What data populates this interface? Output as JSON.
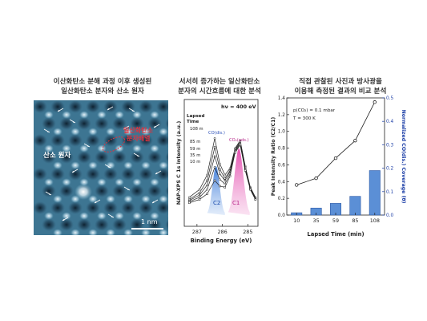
{
  "panels": {
    "stm": {
      "caption_line1": "이산화탄소 분해 과정 이후 생성된",
      "caption_line2": "일산화탄소 분자와 산소 원자",
      "label_oxygen": "산소 원자",
      "label_co_line1": "일산화탄소",
      "label_co_line2": "분자배열",
      "scale_bar": "1 nm"
    },
    "xps": {
      "caption_line1": "서서히 증가하는 일산화탄소",
      "caption_line2": "분자의 시간흐름에 대한 분석",
      "photon_energy": "hν = 400 eV",
      "legend_title_1": "Lapsed",
      "legend_title_2": "Time",
      "ylabel": "NAP-XPS  C 1s intensity (a.u.)",
      "xlabel": "Binding Energy (eV)",
      "peak_co": "CO(dis.)",
      "peak_co2": "CO₂(ads.)",
      "c1": "C1",
      "c2": "C2"
    },
    "bar": {
      "caption_line1": "직접 관찰된 사진과 방사광을",
      "caption_line2": "이용해 측정된 결과의 비교 분석",
      "condition_1": "p(CO₂) = 0.1 mbar",
      "condition_2": "T = 300 K",
      "ylabel_left": "Peak Intensity Ratio (C2/C1)",
      "ylabel_right": "Normalized CO(dis.) Coverage (θ)",
      "xlabel": "Lapsed Time (min)"
    }
  },
  "chart_data": [
    {
      "type": "line",
      "title": "",
      "xlabel": "Binding Energy (eV)",
      "ylabel": "NAP-XPS  C 1s intensity (a.u.)",
      "x_ticks": [
        "287",
        "286",
        "285"
      ],
      "xlim": [
        287.5,
        284.6
      ],
      "series": [
        {
          "name": "108 m",
          "x": [
            287.3,
            286.9,
            286.6,
            286.3,
            286.1,
            285.9,
            285.7,
            285.5,
            285.3,
            285.1,
            284.9,
            284.7
          ],
          "y": [
            1.6,
            2.3,
            3.6,
            6.9,
            4.6,
            3.6,
            4.2,
            6.0,
            6.7,
            4.4,
            2.5,
            1.6
          ]
        },
        {
          "name": "85 m",
          "x": [
            287.3,
            286.9,
            286.6,
            286.3,
            286.1,
            285.9,
            285.7,
            285.5,
            285.3,
            285.1,
            284.9,
            284.7
          ],
          "y": [
            1.4,
            2.0,
            3.1,
            6.1,
            4.1,
            3.3,
            4.0,
            5.9,
            6.6,
            4.3,
            2.4,
            1.5
          ]
        },
        {
          "name": "59 m",
          "x": [
            287.3,
            286.9,
            286.6,
            286.3,
            286.1,
            285.9,
            285.7,
            285.5,
            285.3,
            285.1,
            284.9,
            284.7
          ],
          "y": [
            1.3,
            1.8,
            2.7,
            5.3,
            3.7,
            3.1,
            3.9,
            5.8,
            6.5,
            4.2,
            2.4,
            1.5
          ]
        },
        {
          "name": "35 m",
          "x": [
            287.3,
            286.9,
            286.6,
            286.3,
            286.1,
            285.9,
            285.7,
            285.5,
            285.3,
            285.1,
            284.9,
            284.7
          ],
          "y": [
            1.2,
            1.6,
            2.3,
            4.3,
            3.2,
            2.8,
            3.7,
            5.7,
            6.4,
            4.1,
            2.3,
            1.4
          ]
        },
        {
          "name": "10 m",
          "x": [
            287.3,
            286.9,
            286.6,
            286.3,
            286.1,
            285.9,
            285.7,
            285.5,
            285.3,
            285.1,
            284.9,
            284.7
          ],
          "y": [
            1.1,
            1.4,
            1.9,
            3.1,
            2.6,
            2.5,
            3.5,
            5.6,
            6.3,
            4.0,
            2.3,
            1.4
          ]
        }
      ]
    },
    {
      "type": "bar",
      "title": "",
      "xlabel": "Lapsed Time (min)",
      "ylabel": "Peak Intensity Ratio (C2/C1)",
      "categories": [
        "10",
        "35",
        "59",
        "85",
        "108"
      ],
      "ylim": [
        0.0,
        1.4
      ],
      "y_ticks": [
        "0.0",
        "0.2",
        "0.4",
        "0.6",
        "0.8",
        "1.0",
        "1.2",
        "1.4"
      ],
      "y2label": "Normalized CO(dis.) Coverage (θ)",
      "y2lim": [
        0.0,
        0.5
      ],
      "y2_ticks": [
        "0.0",
        "0.1",
        "0.2",
        "0.3",
        "0.4",
        "0.5"
      ],
      "series": [
        {
          "axis": "right",
          "type": "bar",
          "values": [
            0.01,
            0.03,
            0.05,
            0.08,
            0.19
          ]
        },
        {
          "axis": "left",
          "type": "line",
          "values": [
            0.36,
            0.44,
            0.68,
            0.89,
            1.35
          ]
        }
      ]
    }
  ]
}
